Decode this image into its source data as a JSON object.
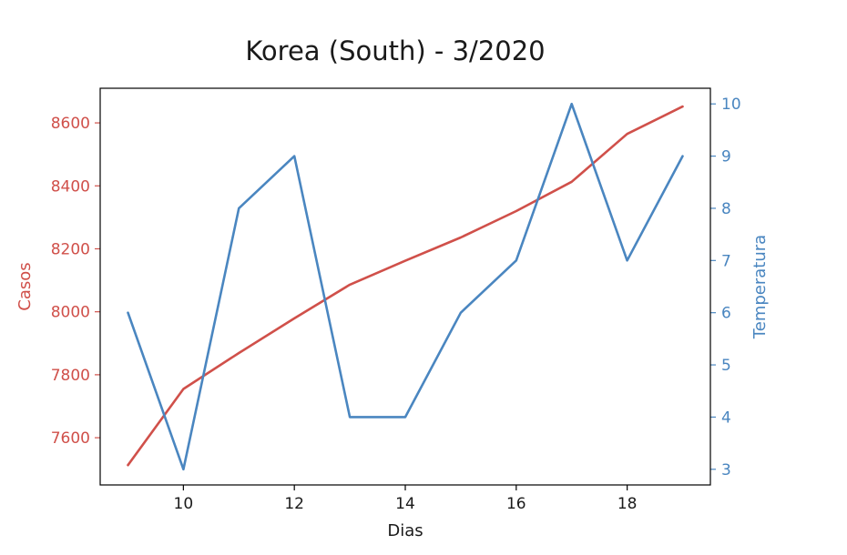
{
  "chart_data": {
    "type": "line",
    "title": "Korea (South) - 3/2020",
    "xlabel": "Dias",
    "x": [
      9,
      10,
      11,
      12,
      13,
      14,
      15,
      16,
      17,
      18,
      19
    ],
    "x_ticks": [
      10,
      12,
      14,
      16,
      18
    ],
    "xlim": [
      8.5,
      19.5
    ],
    "left_axis": {
      "label": "Casos",
      "color": "#d0504a",
      "ylim": [
        7450,
        8710
      ],
      "ticks": [
        7600,
        7800,
        8000,
        8200,
        8400,
        8600
      ]
    },
    "right_axis": {
      "label": "Temperatura",
      "color": "#4a86c0",
      "ylim": [
        2.7,
        10.3
      ],
      "ticks": [
        3,
        4,
        5,
        6,
        7,
        8,
        9,
        10
      ]
    },
    "series": [
      {
        "axis": "left",
        "color": "#d0504a",
        "values": [
          7513,
          7755,
          7869,
          7979,
          8086,
          8162,
          8236,
          8320,
          8413,
          8565,
          8652
        ]
      },
      {
        "axis": "right",
        "color": "#4a86c0",
        "values": [
          6,
          3,
          8,
          9,
          4,
          4,
          6,
          7,
          10,
          7,
          9
        ]
      }
    ],
    "grid": false,
    "legend": "none"
  }
}
